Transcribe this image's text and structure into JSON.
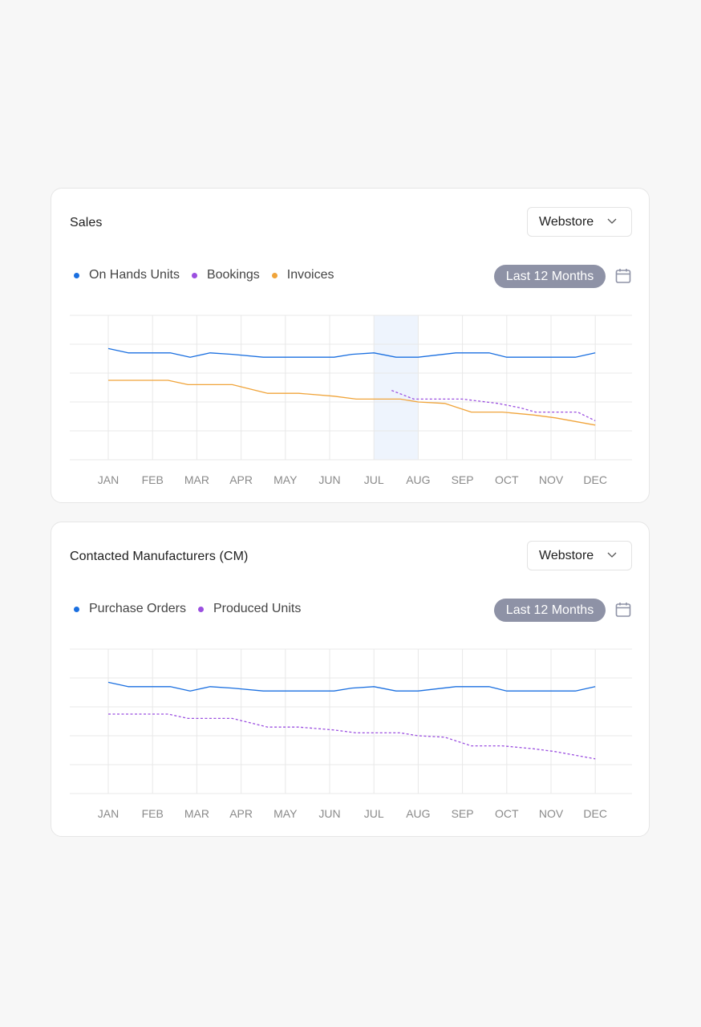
{
  "colors": {
    "blue": "#1a6fe0",
    "purple": "#9b4fe0",
    "orange": "#f0a43a",
    "grid": "#e8e8e8",
    "axis_text": "#8a8a8a",
    "highlight": "#eef4fd",
    "pill": "#8e92a6"
  },
  "cards": [
    {
      "title": "Sales",
      "select_value": "Webstore",
      "legend": [
        {
          "label": "On Hands Units",
          "color": "#1a6fe0"
        },
        {
          "label": "Bookings",
          "color": "#9b4fe0"
        },
        {
          "label": "Invoices",
          "color": "#f0a43a"
        }
      ],
      "period": "Last 12 Months",
      "calendar_icon": "calendar-icon",
      "chevron_icon": "chevron-down-icon"
    },
    {
      "title": "Contacted Manufacturers (CM)",
      "select_value": "Webstore",
      "legend": [
        {
          "label": "Purchase Orders",
          "color": "#1a6fe0"
        },
        {
          "label": "Produced Units",
          "color": "#9b4fe0"
        }
      ],
      "period": "Last 12 Months",
      "calendar_icon": "calendar-icon",
      "chevron_icon": "chevron-down-icon"
    }
  ],
  "chart_data": [
    {
      "type": "line",
      "title": "Sales",
      "categories": [
        "JAN",
        "FEB",
        "MAR",
        "APR",
        "MAY",
        "JUN",
        "JUL",
        "AUG",
        "SEP",
        "OCT",
        "NOV",
        "DEC"
      ],
      "ylim": [
        0,
        5
      ],
      "grid": true,
      "highlight_category": "JUL",
      "series": [
        {
          "name": "On Hands Units",
          "color": "#1a6fe0",
          "style": "solid",
          "x": [
            0,
            0.45,
            1,
            1.4,
            1.85,
            2.3,
            2.8,
            3.5,
            4,
            4.6,
            5.1,
            5.5,
            6,
            6.5,
            7,
            7.85,
            8,
            8.6,
            9,
            9.6,
            10,
            10.55,
            11
          ],
          "y": [
            3.85,
            3.7,
            3.7,
            3.7,
            3.55,
            3.7,
            3.65,
            3.55,
            3.55,
            3.55,
            3.55,
            3.65,
            3.7,
            3.55,
            3.55,
            3.7,
            3.7,
            3.7,
            3.55,
            3.55,
            3.55,
            3.55,
            3.7
          ]
        },
        {
          "name": "Bookings",
          "color": "#9b4fe0",
          "style": "dashed",
          "x": [
            6.4,
            6.9,
            7.4,
            8,
            8.8,
            9.3,
            9.65,
            10.1,
            10.6,
            11
          ],
          "y": [
            2.4,
            2.1,
            2.1,
            2.1,
            1.95,
            1.8,
            1.65,
            1.65,
            1.65,
            1.35
          ]
        },
        {
          "name": "Invoices",
          "color": "#f0a43a",
          "style": "solid",
          "x": [
            0,
            1,
            1.35,
            1.8,
            2.8,
            3.6,
            4.3,
            5.1,
            5.6,
            6,
            6.6,
            7,
            7.6,
            8.2,
            8.9,
            9.6,
            10.1,
            11
          ],
          "y": [
            2.75,
            2.75,
            2.75,
            2.6,
            2.6,
            2.3,
            2.3,
            2.2,
            2.1,
            2.1,
            2.1,
            2.0,
            1.95,
            1.65,
            1.65,
            1.55,
            1.45,
            1.2
          ]
        }
      ]
    },
    {
      "type": "line",
      "title": "Contacted Manufacturers (CM)",
      "categories": [
        "JAN",
        "FEB",
        "MAR",
        "APR",
        "MAY",
        "JUN",
        "JUL",
        "AUG",
        "SEP",
        "OCT",
        "NOV",
        "DEC"
      ],
      "ylim": [
        0,
        5
      ],
      "grid": true,
      "series": [
        {
          "name": "Purchase Orders",
          "color": "#1a6fe0",
          "style": "solid",
          "x": [
            0,
            0.45,
            1,
            1.4,
            1.85,
            2.3,
            2.8,
            3.5,
            4,
            4.6,
            5.1,
            5.5,
            6,
            6.5,
            7,
            7.85,
            8,
            8.6,
            9,
            9.6,
            10,
            10.55,
            11
          ],
          "y": [
            3.85,
            3.7,
            3.7,
            3.7,
            3.55,
            3.7,
            3.65,
            3.55,
            3.55,
            3.55,
            3.55,
            3.65,
            3.7,
            3.55,
            3.55,
            3.7,
            3.7,
            3.7,
            3.55,
            3.55,
            3.55,
            3.55,
            3.7
          ]
        },
        {
          "name": "Produced Units",
          "color": "#9b4fe0",
          "style": "dashed",
          "x": [
            0,
            1,
            1.35,
            1.8,
            2.8,
            3.6,
            4.3,
            5.1,
            5.6,
            6,
            6.6,
            7,
            7.6,
            8.2,
            8.9,
            9.6,
            10.1,
            11
          ],
          "y": [
            2.75,
            2.75,
            2.75,
            2.6,
            2.6,
            2.3,
            2.3,
            2.2,
            2.1,
            2.1,
            2.1,
            2.0,
            1.95,
            1.65,
            1.65,
            1.55,
            1.45,
            1.2
          ]
        }
      ]
    }
  ]
}
